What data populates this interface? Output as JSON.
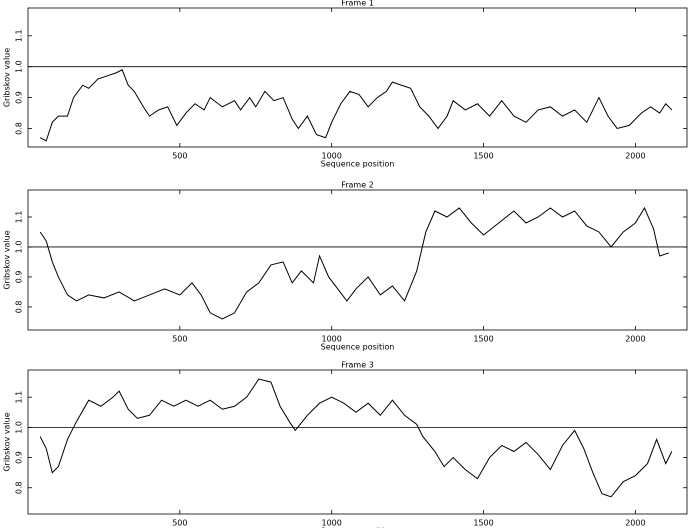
{
  "chart_data": [
    {
      "type": "line",
      "title": "Frame 1",
      "x_label": "Sequence position",
      "y_label": "Gribskov value",
      "xlim": [
        0,
        2170
      ],
      "xticks": [
        500,
        1000,
        1500,
        2000
      ],
      "ylim": [
        0.74,
        1.19
      ],
      "yticks": [
        0.8,
        0.9,
        {
          "value": 1,
          "label": "1.0"
        },
        1.1
      ],
      "reference_line": 1,
      "color": "#000000",
      "x": [
        40,
        60,
        80,
        100,
        130,
        150,
        180,
        200,
        230,
        260,
        290,
        310,
        330,
        350,
        380,
        400,
        430,
        460,
        490,
        520,
        550,
        580,
        600,
        640,
        680,
        700,
        730,
        750,
        780,
        810,
        840,
        870,
        890,
        920,
        950,
        980,
        1000,
        1030,
        1060,
        1090,
        1120,
        1150,
        1180,
        1200,
        1230,
        1260,
        1290,
        1320,
        1350,
        1380,
        1400,
        1440,
        1480,
        1520,
        1560,
        1600,
        1640,
        1680,
        1720,
        1760,
        1800,
        1840,
        1880,
        1910,
        1940,
        1980,
        2020,
        2050,
        2080,
        2100,
        2120
      ],
      "values": [
        0.77,
        0.76,
        0.82,
        0.84,
        0.84,
        0.9,
        0.94,
        0.93,
        0.96,
        0.97,
        0.98,
        0.99,
        0.94,
        0.92,
        0.87,
        0.84,
        0.86,
        0.87,
        0.81,
        0.85,
        0.88,
        0.86,
        0.9,
        0.87,
        0.89,
        0.86,
        0.9,
        0.87,
        0.92,
        0.89,
        0.9,
        0.83,
        0.8,
        0.84,
        0.78,
        0.77,
        0.82,
        0.88,
        0.92,
        0.91,
        0.87,
        0.9,
        0.92,
        0.95,
        0.94,
        0.93,
        0.87,
        0.84,
        0.8,
        0.84,
        0.89,
        0.86,
        0.88,
        0.84,
        0.89,
        0.84,
        0.82,
        0.86,
        0.87,
        0.84,
        0.86,
        0.82,
        0.9,
        0.84,
        0.8,
        0.81,
        0.85,
        0.87,
        0.85,
        0.88,
        0.86
      ]
    },
    {
      "type": "line",
      "title": "Frame 2",
      "x_label": "Sequence position",
      "y_label": "Gribskov value",
      "xlim": [
        0,
        2170
      ],
      "xticks": [
        500,
        1000,
        1500,
        2000
      ],
      "ylim": [
        0.723,
        1.19
      ],
      "yticks": [
        0.8,
        0.9,
        {
          "value": 1,
          "label": "1.0"
        },
        1.1
      ],
      "reference_line": 1,
      "color": "#000000",
      "x": [
        40,
        60,
        80,
        100,
        130,
        160,
        200,
        250,
        300,
        350,
        400,
        450,
        500,
        540,
        570,
        600,
        640,
        680,
        720,
        760,
        800,
        840,
        870,
        900,
        940,
        960,
        990,
        1020,
        1050,
        1080,
        1120,
        1160,
        1200,
        1240,
        1280,
        1310,
        1340,
        1380,
        1420,
        1460,
        1500,
        1550,
        1600,
        1640,
        1680,
        1720,
        1760,
        1800,
        1840,
        1880,
        1920,
        1960,
        2000,
        2030,
        2060,
        2080,
        2110
      ],
      "values": [
        1.05,
        1.02,
        0.95,
        0.9,
        0.84,
        0.82,
        0.84,
        0.83,
        0.85,
        0.82,
        0.84,
        0.86,
        0.84,
        0.88,
        0.84,
        0.78,
        0.76,
        0.78,
        0.85,
        0.88,
        0.94,
        0.95,
        0.88,
        0.92,
        0.88,
        0.97,
        0.9,
        0.86,
        0.82,
        0.86,
        0.9,
        0.84,
        0.87,
        0.82,
        0.92,
        1.05,
        1.12,
        1.1,
        1.13,
        1.08,
        1.04,
        1.08,
        1.12,
        1.08,
        1.1,
        1.13,
        1.1,
        1.12,
        1.07,
        1.05,
        1.0,
        1.05,
        1.08,
        1.13,
        1.06,
        0.97,
        0.98
      ]
    },
    {
      "type": "line",
      "title": "Frame 3",
      "x_label": "Sequence position",
      "y_label": "Gribskov value",
      "xlim": [
        0,
        2170
      ],
      "xticks": [
        500,
        1000,
        1500,
        2000
      ],
      "ylim": [
        0.713,
        1.19
      ],
      "yticks": [
        0.8,
        0.9,
        {
          "value": 1,
          "label": "1.0"
        },
        1.1
      ],
      "reference_line": 1,
      "color": "#000000",
      "x": [
        40,
        60,
        80,
        100,
        130,
        160,
        200,
        240,
        280,
        300,
        330,
        360,
        400,
        440,
        480,
        520,
        560,
        600,
        640,
        680,
        720,
        760,
        800,
        830,
        860,
        880,
        920,
        960,
        1000,
        1040,
        1080,
        1120,
        1160,
        1200,
        1240,
        1280,
        1300,
        1340,
        1370,
        1400,
        1440,
        1480,
        1520,
        1560,
        1600,
        1640,
        1680,
        1720,
        1760,
        1800,
        1830,
        1860,
        1890,
        1920,
        1960,
        2000,
        2040,
        2070,
        2100,
        2120
      ],
      "values": [
        0.97,
        0.93,
        0.85,
        0.87,
        0.96,
        1.02,
        1.09,
        1.07,
        1.1,
        1.12,
        1.06,
        1.03,
        1.04,
        1.09,
        1.07,
        1.09,
        1.07,
        1.09,
        1.06,
        1.07,
        1.1,
        1.16,
        1.15,
        1.07,
        1.02,
        0.99,
        1.04,
        1.08,
        1.1,
        1.08,
        1.05,
        1.08,
        1.04,
        1.09,
        1.04,
        1.01,
        0.97,
        0.92,
        0.87,
        0.9,
        0.86,
        0.83,
        0.9,
        0.94,
        0.92,
        0.95,
        0.91,
        0.86,
        0.94,
        0.99,
        0.93,
        0.85,
        0.78,
        0.77,
        0.82,
        0.84,
        0.88,
        0.96,
        0.88,
        0.92
      ]
    }
  ]
}
